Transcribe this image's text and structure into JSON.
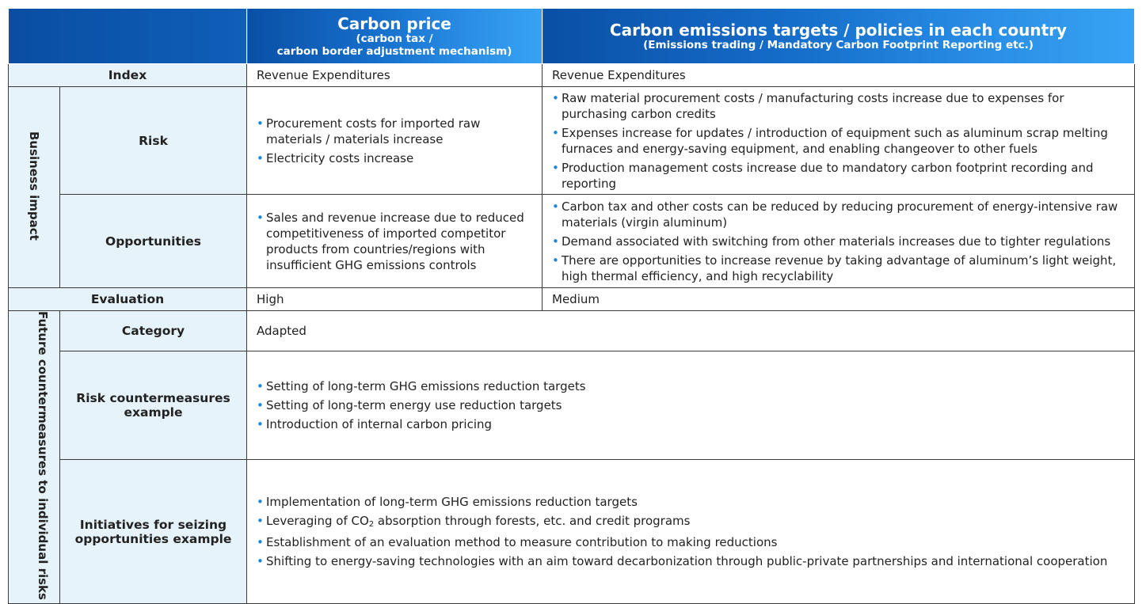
{
  "header": {
    "col1_title": "Carbon price",
    "col1_sub1": "(carbon tax /",
    "col1_sub2": "carbon border adjustment mechanism)",
    "col2_title": "Carbon emissions targets / policies in each country",
    "col2_sub": "(Emissions trading / Mandatory Carbon Footprint Reporting etc.)"
  },
  "index": {
    "label": "Index",
    "col1": "Revenue Expenditures",
    "col2": "Revenue Expenditures"
  },
  "business_impact": {
    "label": "Business impact",
    "risk": {
      "label": "Risk",
      "col1": [
        "Procurement costs for imported raw materials / materials increase",
        "Electricity costs increase"
      ],
      "col2": [
        "Raw material procurement costs / manufacturing costs increase due to expenses for purchasing carbon credits",
        "Expenses increase for updates / introduction of equipment such as aluminum scrap melting furnaces and energy-saving equipment, and enabling changeover to other fuels",
        "Production management costs increase due to mandatory carbon footprint recording and reporting"
      ]
    },
    "opportunities": {
      "label": "Opportunities",
      "col1": [
        "Sales and revenue increase due to reduced competitiveness of imported competitor products from countries/regions with insufficient GHG emissions controls"
      ],
      "col2": [
        "Carbon tax and other costs can be reduced by reducing procurement of energy-intensive raw materials (virgin aluminum)",
        "Demand associated with switching from other materials increases due to tighter regulations",
        "There are opportunities to increase revenue by taking advantage of aluminum’s light weight, high thermal efficiency, and high recyclability"
      ]
    }
  },
  "evaluation": {
    "label": "Evaluation",
    "col1": "High",
    "col2": "Medium"
  },
  "future": {
    "label": "Future countermeasures to individual risks",
    "category": {
      "label": "Category",
      "value": "Adapted"
    },
    "risk_countermeasures": {
      "label": "Risk countermeasures example",
      "items": [
        "Setting of long-term GHG emissions reduction targets",
        "Setting of long-term energy use reduction targets",
        "Introduction of internal carbon pricing"
      ]
    },
    "initiatives": {
      "label": "Initiatives for seizing opportunities example",
      "item1": "Implementation of long-term GHG emissions reduction targets",
      "item2_before": "Leveraging of CO",
      "item2_sub": "2",
      "item2_after": " absorption through forests, etc. and credit programs",
      "item3": "Establishment of an evaluation method to measure contribution to making reductions",
      "item4": "Shifting to energy-saving technologies with an aim toward decarbonization through public-private partnerships and international cooperation"
    }
  },
  "colors": {
    "header_dark": "#0a4fa6",
    "header_light": "#37a3f2",
    "label_bg": "#e6f3fa",
    "bullet": "#1a86d6"
  }
}
